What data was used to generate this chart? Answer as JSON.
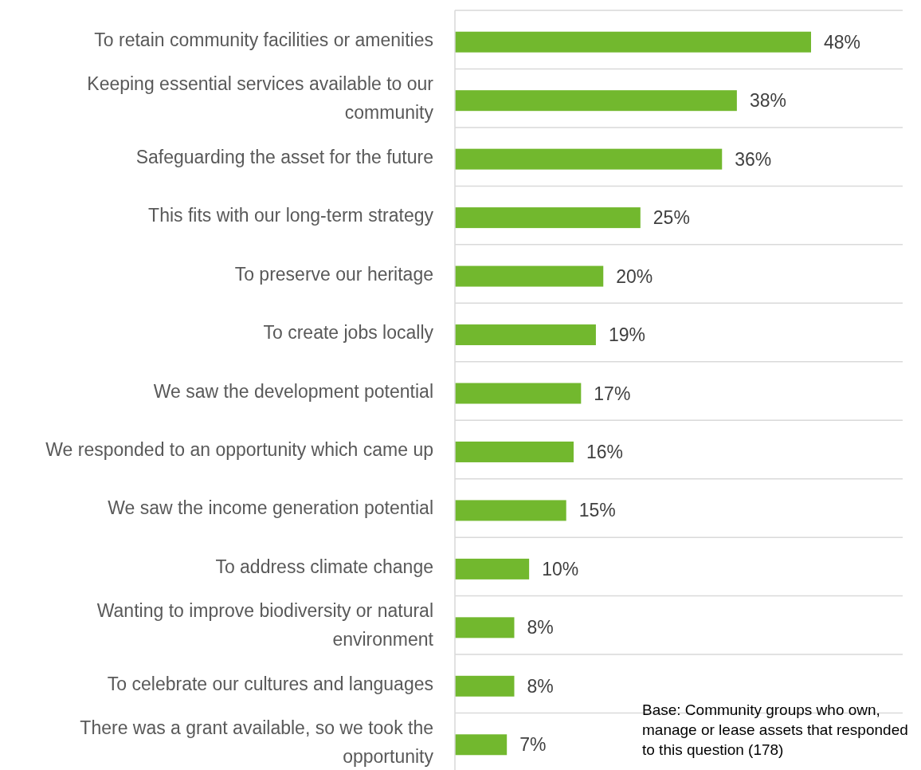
{
  "chart_data": {
    "type": "bar",
    "orientation": "horizontal",
    "categories": [
      "To retain community facilities or amenities",
      "Keeping essential services available to our community",
      "Safeguarding the asset for the future",
      "This fits with our long-term strategy",
      "To preserve our heritage",
      "To create jobs locally",
      "We saw the development potential",
      "We responded to an opportunity which came up",
      "We saw the income generation potential",
      "To address climate change",
      "Wanting to improve biodiversity or natural environment",
      "To celebrate our cultures and languages",
      "There was a grant available, so we took the opportunity"
    ],
    "values": [
      48,
      38,
      36,
      25,
      20,
      19,
      17,
      16,
      15,
      10,
      8,
      8,
      7
    ],
    "value_labels": [
      "48%",
      "38%",
      "36%",
      "25%",
      "20%",
      "19%",
      "17%",
      "16%",
      "15%",
      "10%",
      "8%",
      "8%",
      "7%"
    ],
    "color": "#72b82e",
    "grid": "y",
    "annotations": [
      "Base: Community groups who own, manage or lease assets that responded to this question (178)"
    ]
  }
}
